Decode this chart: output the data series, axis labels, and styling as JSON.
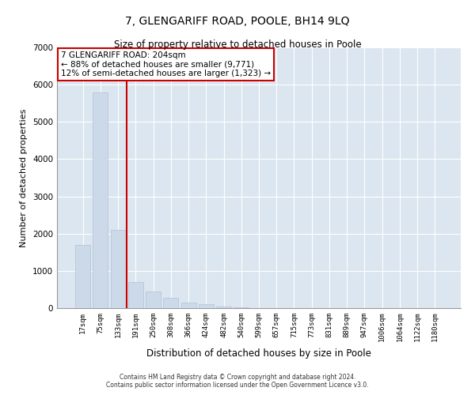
{
  "title": "7, GLENGARIFF ROAD, POOLE, BH14 9LQ",
  "subtitle": "Size of property relative to detached houses in Poole",
  "xlabel": "Distribution of detached houses by size in Poole",
  "ylabel": "Number of detached properties",
  "bar_color": "#ccd9e8",
  "bar_edgecolor": "#afc3d6",
  "vline_color": "#cc0000",
  "vline_x": 2.5,
  "annotation_text": "7 GLENGARIFF ROAD: 204sqm\n← 88% of detached houses are smaller (9,771)\n12% of semi-detached houses are larger (1,323) →",
  "annotation_box_color": "white",
  "annotation_box_edgecolor": "#cc0000",
  "categories": [
    "17sqm",
    "75sqm",
    "133sqm",
    "191sqm",
    "250sqm",
    "308sqm",
    "366sqm",
    "424sqm",
    "482sqm",
    "540sqm",
    "599sqm",
    "657sqm",
    "715sqm",
    "773sqm",
    "831sqm",
    "889sqm",
    "947sqm",
    "1006sqm",
    "1064sqm",
    "1122sqm",
    "1180sqm"
  ],
  "values": [
    1700,
    5800,
    2100,
    700,
    450,
    280,
    150,
    100,
    50,
    20,
    10,
    5,
    5,
    0,
    0,
    0,
    0,
    0,
    0,
    0,
    0
  ],
  "ylim": [
    0,
    7000
  ],
  "yticks": [
    0,
    1000,
    2000,
    3000,
    4000,
    5000,
    6000,
    7000
  ],
  "background_color": "#dce6f0",
  "grid_color": "white",
  "footer_line1": "Contains HM Land Registry data © Crown copyright and database right 2024.",
  "footer_line2": "Contains public sector information licensed under the Open Government Licence v3.0."
}
